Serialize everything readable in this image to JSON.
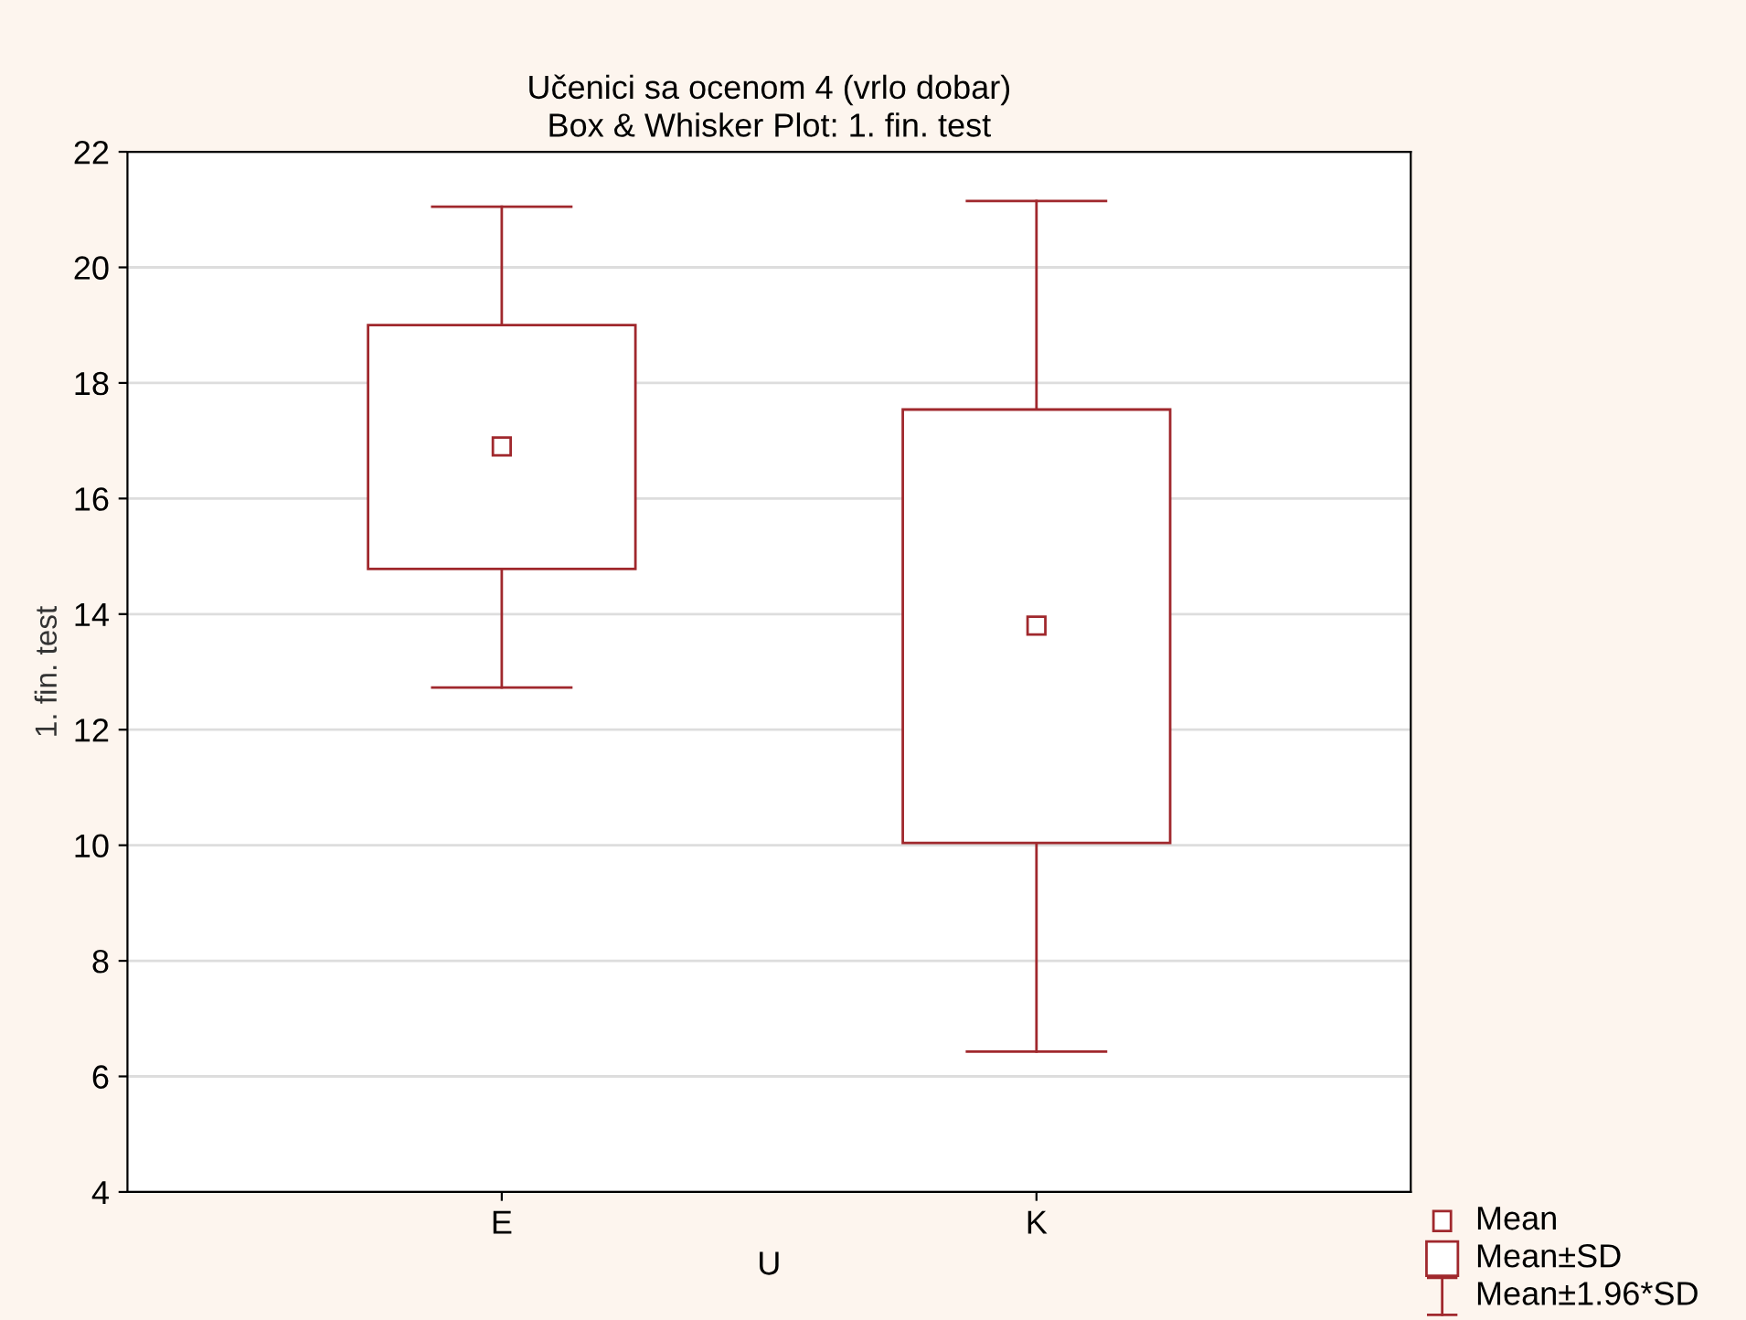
{
  "chart_data": {
    "type": "box",
    "title": "Učenici sa ocenom 4 (vrlo dobar)",
    "subtitle": "Box & Whisker Plot: 1. fin. test",
    "xlabel": "U",
    "ylabel": "1. fin. test",
    "categories": [
      "E",
      "K"
    ],
    "color": "#a0282d",
    "boxes": [
      {
        "low": 12.73,
        "q1": 14.78,
        "q3": 19.0,
        "high": 21.05,
        "mean": 16.9
      },
      {
        "low": 6.43,
        "q1": 10.04,
        "q3": 17.54,
        "high": 21.15,
        "mean": 13.8
      }
    ],
    "annotations": [
      "Mean",
      "Mean±SD",
      "Mean±1.96*SD"
    ],
    "ylim": [
      4,
      22
    ],
    "yticks": [
      4,
      6,
      8,
      10,
      12,
      14,
      16,
      18,
      20,
      22
    ],
    "grid": "y"
  }
}
